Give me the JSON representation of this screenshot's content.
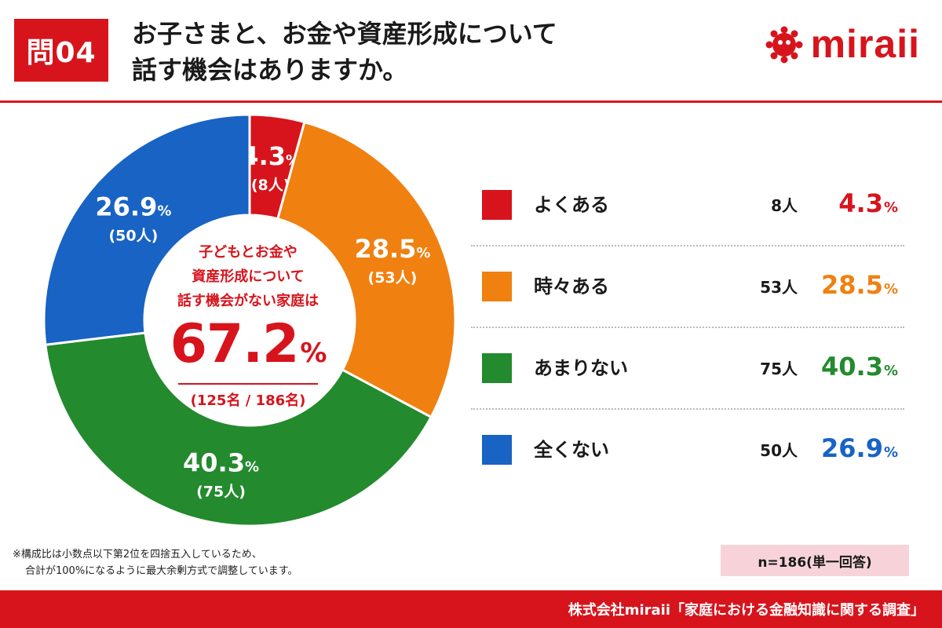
{
  "header": {
    "question_badge": "問04",
    "title_line1": "お子さまと、お金や資産形成について",
    "title_line2": "話す機会はありますか。",
    "brand_name": "miraii",
    "brand_color": "#d7141c"
  },
  "chart_data": {
    "type": "pie",
    "variant": "donut",
    "start_angle": "12 o'clock, clockwise",
    "series": [
      {
        "name": "よくある",
        "count_label": "8人",
        "count": 8,
        "value": 4.3,
        "value_label": "4.3",
        "count_paren": "(8人)",
        "color": "#d7141c"
      },
      {
        "name": "時々ある",
        "count_label": "53人",
        "count": 53,
        "value": 28.5,
        "value_label": "28.5",
        "count_paren": "(53人)",
        "color": "#f08010"
      },
      {
        "name": "あまりない",
        "count_label": "75人",
        "count": 75,
        "value": 40.3,
        "value_label": "40.3",
        "count_paren": "(75人)",
        "color": "#238a2e"
      },
      {
        "name": "全くない",
        "count_label": "50人",
        "count": 50,
        "value": 26.9,
        "value_label": "26.9",
        "count_paren": "(50人)",
        "color": "#1863c4"
      }
    ],
    "percent_sign": "%",
    "center": {
      "line1": "子どもとお金や",
      "line2": "資産形成について",
      "line3": "話す機会がない家庭は",
      "value": "67.2",
      "percent_sign": "%",
      "sub": "(125名 / 186名)"
    }
  },
  "notes": {
    "line1": "※構成比は小数点以下第2位を四捨五入しているため、",
    "line2": "合計が100%になるように最大余剰方式で調整しています。"
  },
  "sample_badge": "n=186(単一回答)",
  "footer": {
    "source": "株式会社miraii「家庭における金融知識に関する調査」"
  }
}
